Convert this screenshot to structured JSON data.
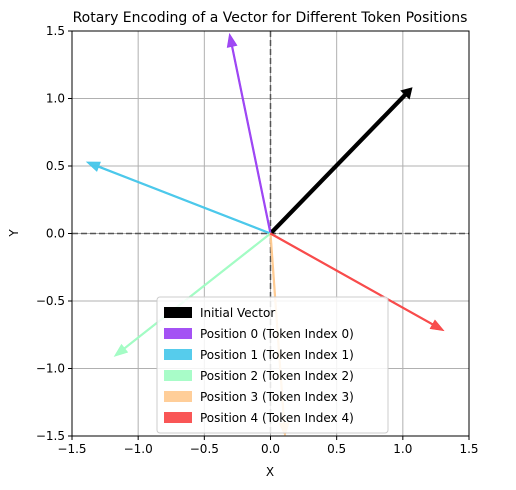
{
  "chart_data": {
    "type": "vector",
    "title": "Rotary Encoding of a Vector for Different Token Positions",
    "xlabel": "X",
    "ylabel": "Y",
    "xlim": [
      -1.5,
      1.5
    ],
    "ylim": [
      -1.5,
      1.5
    ],
    "xticks": [
      "−1.5",
      "−1.0",
      "−0.5",
      "0.0",
      "0.5",
      "1.0",
      "1.5"
    ],
    "yticks": [
      "−1.5",
      "−1.0",
      "−0.5",
      "0.0",
      "0.5",
      "1.0",
      "1.5"
    ],
    "grid": true,
    "reference_lines": [
      "x=0 dashed",
      "y=0 dashed"
    ],
    "legend_position": "lower-center",
    "series": [
      {
        "name": "Initial Vector",
        "color": "#000000",
        "start": [
          0,
          0
        ],
        "end": [
          1.07,
          1.08
        ]
      },
      {
        "name": "Position 0 (Token Index 0)",
        "color": "#9a3ff3",
        "start": [
          0,
          0
        ],
        "end": [
          -0.31,
          1.48
        ]
      },
      {
        "name": "Position 1 (Token Index 1)",
        "color": "#44c6ea",
        "start": [
          0,
          0
        ],
        "end": [
          -1.39,
          0.53
        ]
      },
      {
        "name": "Position 2 (Token Index 2)",
        "color": "#9ffcc2",
        "start": [
          0,
          0
        ],
        "end": [
          -1.18,
          -0.91
        ]
      },
      {
        "name": "Position 3 (Token Index 3)",
        "color": "#ffc98e",
        "start": [
          0,
          0
        ],
        "end": [
          0.11,
          -1.5
        ]
      },
      {
        "name": "Position 4 (Token Index 4)",
        "color": "#f84444",
        "start": [
          0,
          0
        ],
        "end": [
          1.31,
          -0.72
        ]
      }
    ]
  }
}
